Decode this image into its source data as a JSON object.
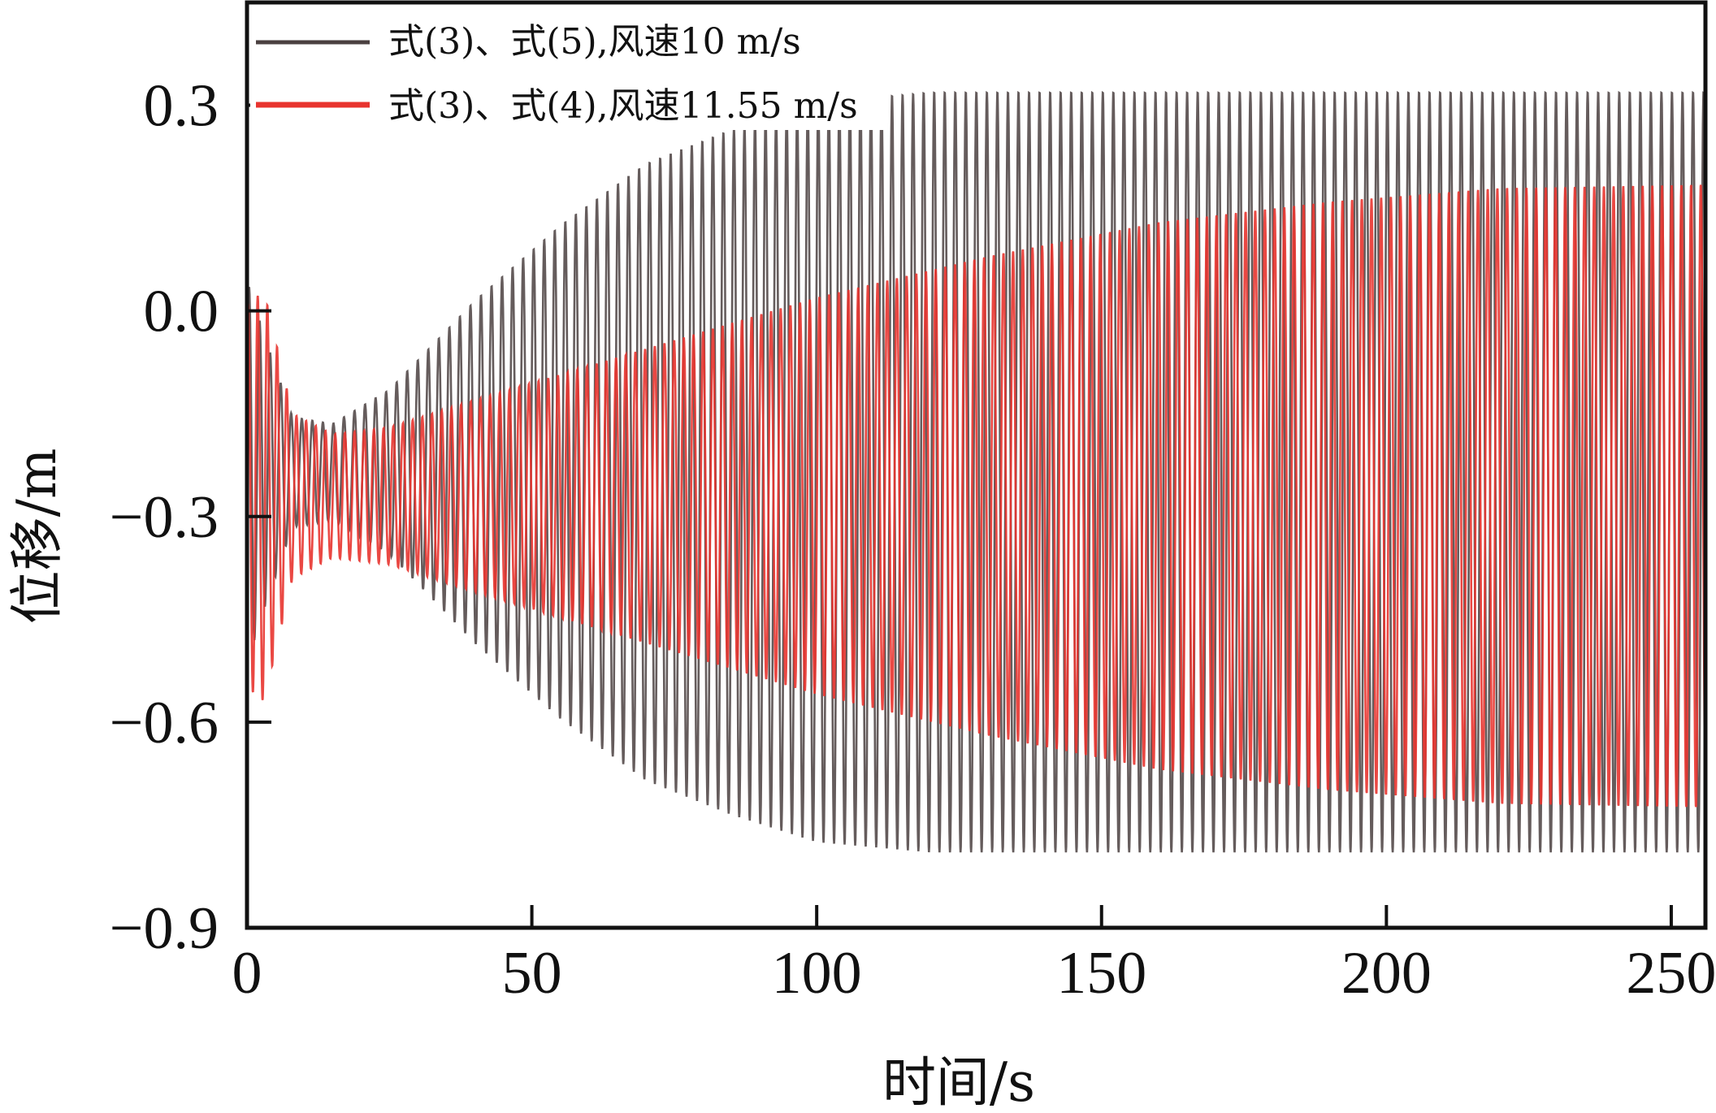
{
  "chart_data": {
    "type": "line",
    "title": "",
    "xlabel": "时间/s",
    "ylabel": "位移/m",
    "xlim": [
      0,
      256
    ],
    "ylim": [
      -0.9,
      0.45
    ],
    "xticks": [
      0,
      50,
      100,
      150,
      200,
      250
    ],
    "xtick_labels": [
      "0",
      "50",
      "100",
      "150",
      "200",
      "250"
    ],
    "yticks": [
      0.3,
      0.0,
      -0.3,
      -0.6,
      -0.9
    ],
    "ytick_labels": [
      "0.3",
      "0.0",
      "−0.3",
      "−0.6",
      "−0.9"
    ],
    "grid": false,
    "legend_position": "top-left",
    "series": [
      {
        "name": "式(3)、式(5),风速10 m/s",
        "color": "#4a4040",
        "mean": -0.235,
        "period_s": 1.85,
        "envelope": [
          [
            0,
            0.28
          ],
          [
            3,
            0.2
          ],
          [
            8,
            0.08
          ],
          [
            15,
            0.07
          ],
          [
            25,
            0.12
          ],
          [
            40,
            0.25
          ],
          [
            55,
            0.36
          ],
          [
            70,
            0.45
          ],
          [
            85,
            0.5
          ],
          [
            100,
            0.54
          ],
          [
            120,
            0.555
          ],
          [
            150,
            0.555
          ],
          [
            256,
            0.555
          ]
        ]
      },
      {
        "name": "式(3)、式(4),风速11.55 m/s",
        "color": "#e8342f",
        "mean": -0.27,
        "period_s": 1.7,
        "envelope": [
          [
            0,
            0.28
          ],
          [
            3,
            0.3
          ],
          [
            8,
            0.12
          ],
          [
            15,
            0.09
          ],
          [
            25,
            0.1
          ],
          [
            40,
            0.14
          ],
          [
            60,
            0.19
          ],
          [
            80,
            0.24
          ],
          [
            100,
            0.29
          ],
          [
            130,
            0.35
          ],
          [
            160,
            0.4
          ],
          [
            190,
            0.43
          ],
          [
            220,
            0.45
          ],
          [
            256,
            0.455
          ]
        ]
      }
    ]
  }
}
